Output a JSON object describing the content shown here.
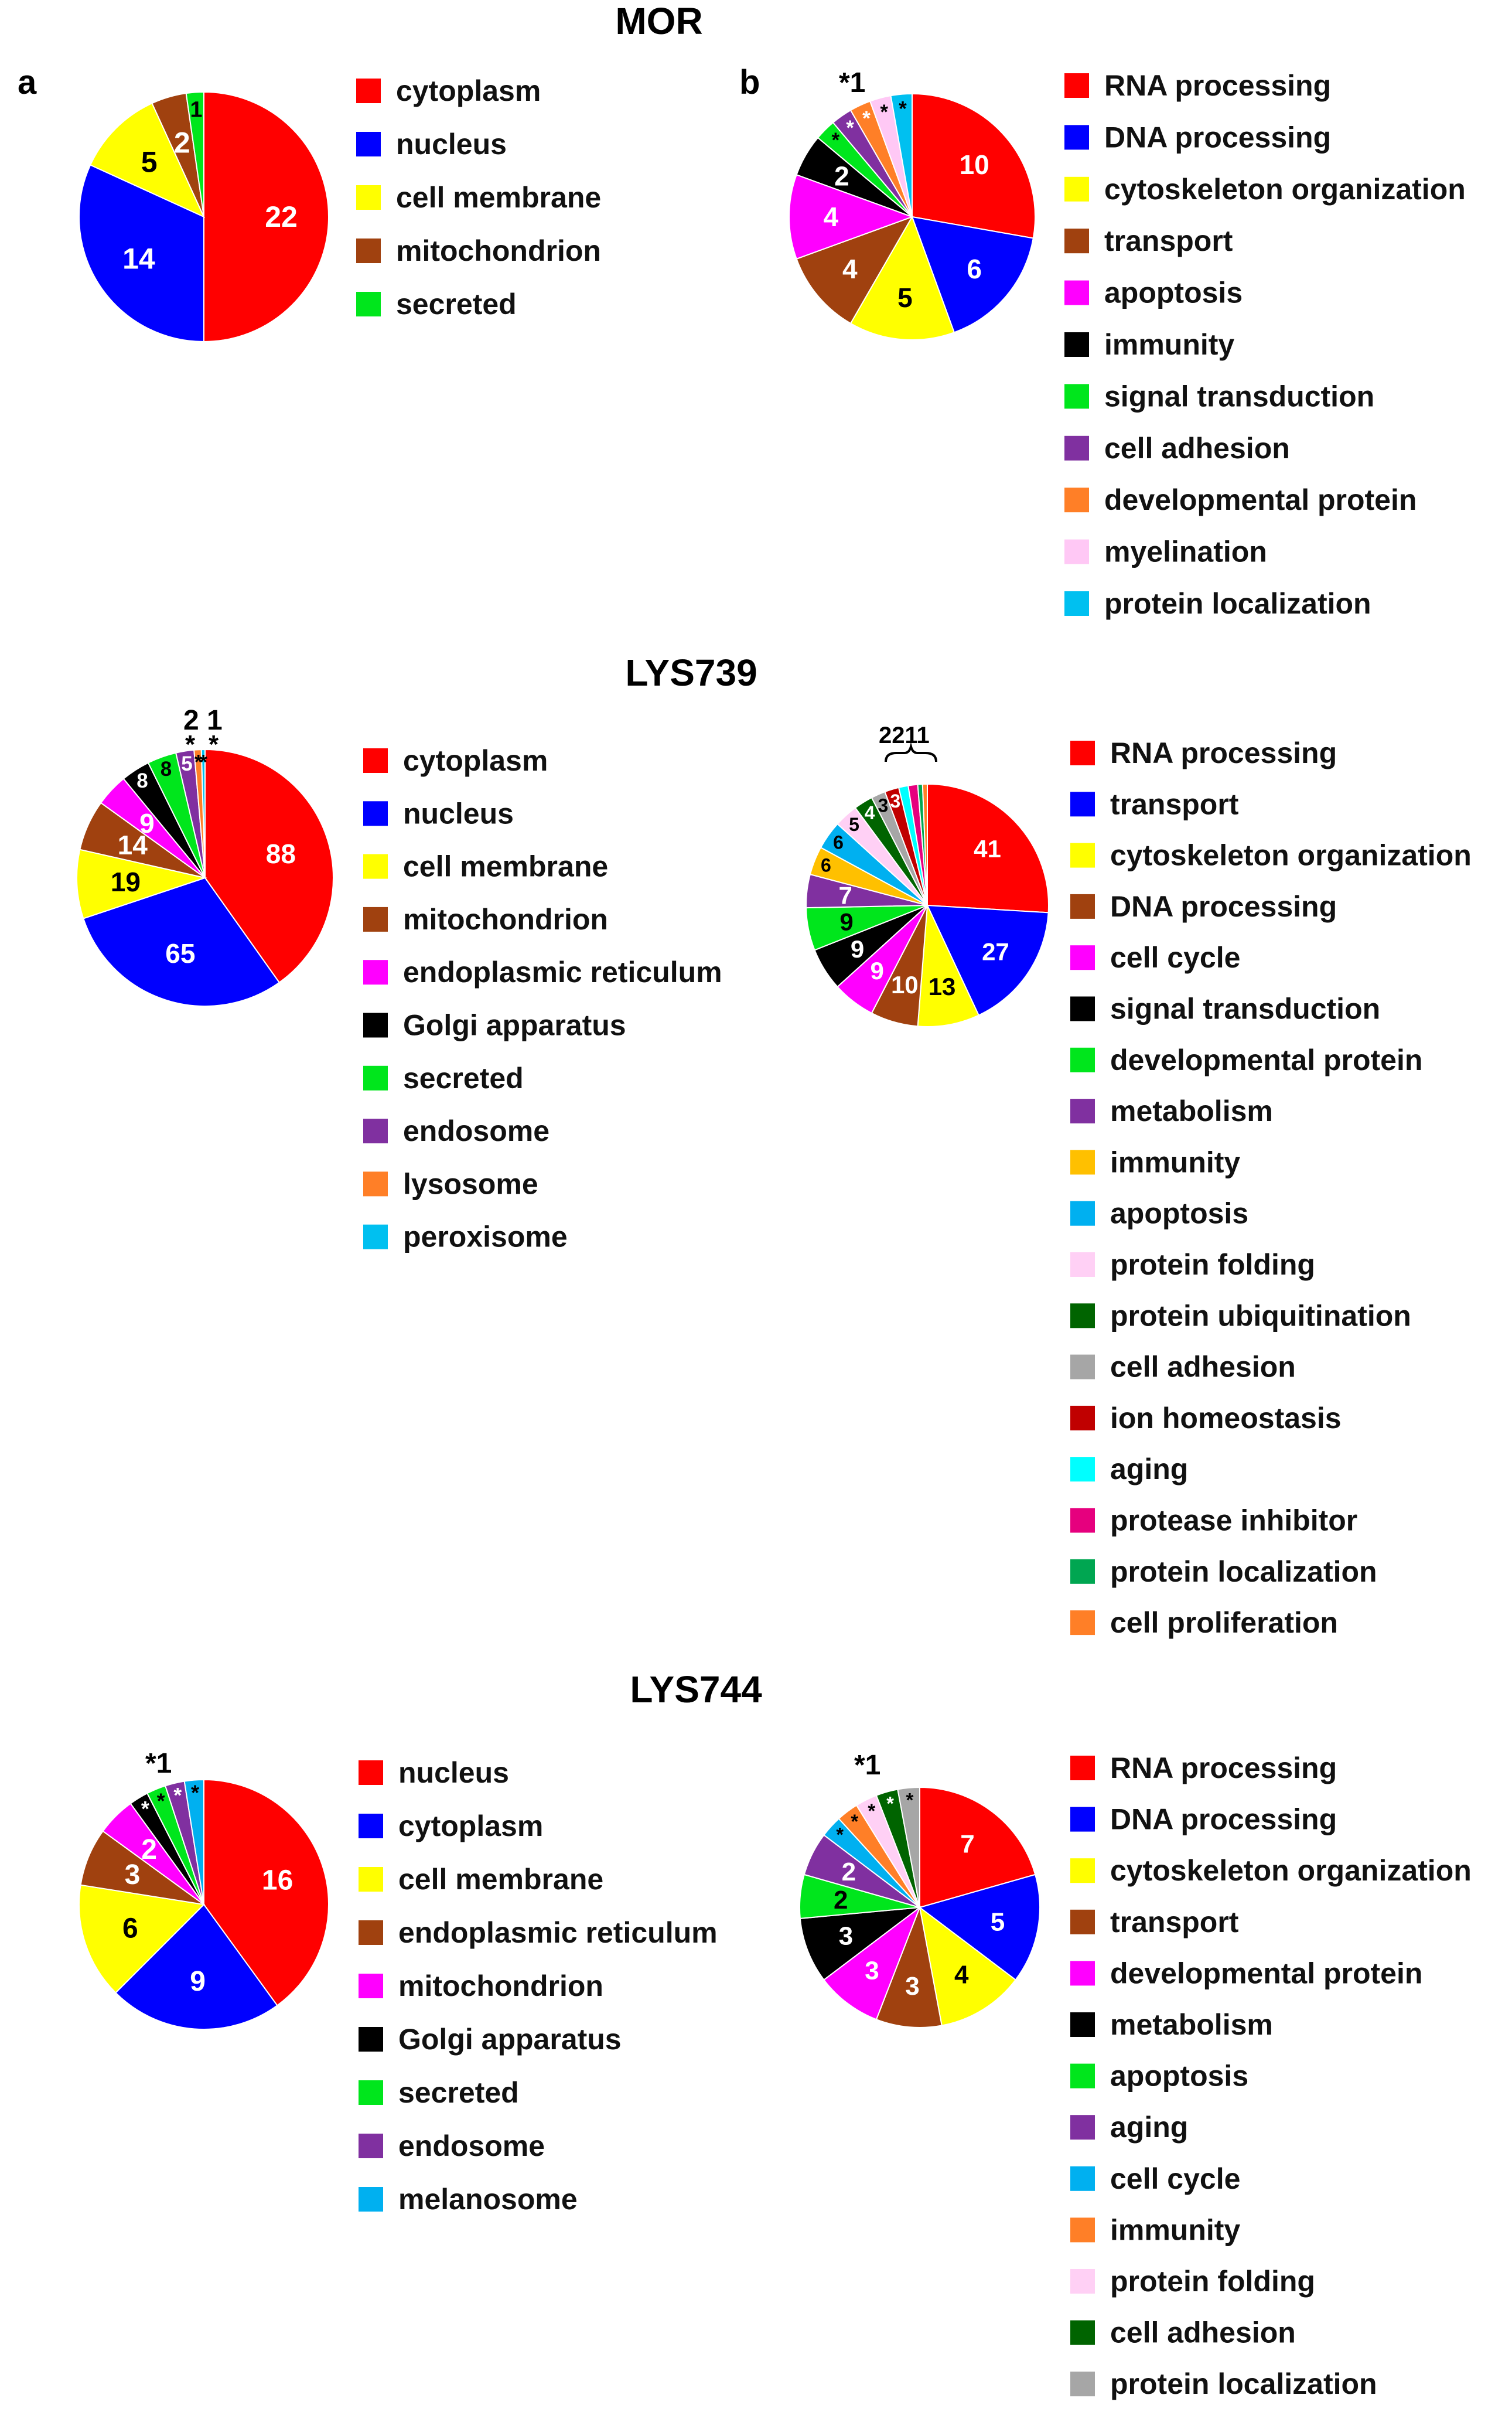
{
  "figure": {
    "panel_labels": {
      "a": "a",
      "b": "b"
    }
  },
  "chart_data": [
    {
      "type": "pie",
      "title": "MOR",
      "panel": "a",
      "id": "mor-loc",
      "categories": [
        "cytoplasm",
        "nucleus",
        "cell membrane",
        "mitochondrion",
        "secreted"
      ],
      "values": [
        22,
        14,
        5,
        2,
        1
      ],
      "colors": [
        "#ff0000",
        "#0000ff",
        "#ffff00",
        "#a0410f",
        "#00e61c"
      ],
      "labels": [
        "22",
        "14",
        "5",
        "2",
        "1"
      ],
      "label_colors": [
        "#ffffff",
        "#ffffff",
        "#000000",
        "#ffffff",
        "#000000"
      ],
      "outside_annotations": []
    },
    {
      "type": "pie",
      "title": "",
      "panel": "b",
      "id": "mor-func",
      "categories": [
        "RNA processing",
        "DNA processing",
        "cytoskeleton organization",
        "transport",
        "apoptosis",
        "immunity",
        "signal transduction",
        "cell adhesion",
        "developmental protein",
        "myelination",
        "protein localization"
      ],
      "values": [
        10,
        6,
        5,
        4,
        4,
        2,
        1,
        1,
        1,
        1,
        1
      ],
      "colors": [
        "#ff0000",
        "#0000ff",
        "#ffff00",
        "#a0410f",
        "#ff00ff",
        "#000000",
        "#00e61c",
        "#8030a0",
        "#ff7f27",
        "#ffc8f5",
        "#00c0f0"
      ],
      "labels": [
        "10",
        "6",
        "5",
        "4",
        "4",
        "2",
        "*",
        "*",
        "*",
        "*",
        "*"
      ],
      "label_colors": [
        "#ffffff",
        "#ffffff",
        "#000000",
        "#ffffff",
        "#ffffff",
        "#ffffff",
        "#000000",
        "#ffffff",
        "#ffffff",
        "#000000",
        "#000000"
      ],
      "outside_annotations": [
        "*1"
      ]
    },
    {
      "type": "pie",
      "title": "LYS739",
      "panel": "a",
      "id": "lys739-loc",
      "categories": [
        "cytoplasm",
        "nucleus",
        "cell membrane",
        "mitochondrion",
        "endoplasmic reticulum",
        "Golgi apparatus",
        "secreted",
        "endosome",
        "lysosome",
        "peroxisome"
      ],
      "values": [
        88,
        65,
        19,
        14,
        9,
        8,
        8,
        5,
        2,
        1
      ],
      "colors": [
        "#ff0000",
        "#0000ff",
        "#ffff00",
        "#a0410f",
        "#ff00ff",
        "#000000",
        "#00e61c",
        "#8030a0",
        "#ff7f27",
        "#00c0f0"
      ],
      "labels": [
        "88",
        "65",
        "19",
        "14",
        "9",
        "8",
        "8",
        "5",
        "*",
        "*"
      ],
      "label_colors": [
        "#ffffff",
        "#ffffff",
        "#000000",
        "#ffffff",
        "#ffffff",
        "#ffffff",
        "#000000",
        "#ffffff",
        "#000000",
        "#000000"
      ],
      "outside_annotations": [
        "2",
        "1",
        "*",
        "*",
        "*"
      ]
    },
    {
      "type": "pie",
      "title": "",
      "panel": "b",
      "id": "lys739-func",
      "categories": [
        "RNA processing",
        "transport",
        "cytoskeleton organization",
        "DNA processing",
        "cell cycle",
        "signal transduction",
        "developmental protein",
        "metabolism",
        "immunity",
        "apoptosis",
        "protein folding",
        "protein ubiquitination",
        "cell adhesion",
        "ion homeostasis",
        "aging",
        "protease inhibitor",
        "protein localization",
        "cell proliferation"
      ],
      "values": [
        41,
        27,
        13,
        10,
        9,
        9,
        9,
        7,
        6,
        6,
        5,
        4,
        3,
        3,
        2,
        2,
        1,
        1
      ],
      "colors": [
        "#ff0000",
        "#0000ff",
        "#ffff00",
        "#a0410f",
        "#ff00ff",
        "#000000",
        "#00e61c",
        "#8030a0",
        "#ffc000",
        "#00b0f0",
        "#ffd0f5",
        "#006400",
        "#a6a6a6",
        "#c00000",
        "#00ffff",
        "#e6007e",
        "#00a651",
        "#ff7f27"
      ],
      "labels": [
        "41",
        "27",
        "13",
        "10",
        "9",
        "9",
        "9",
        "7",
        "6",
        "6",
        "5",
        "4",
        "3",
        "3",
        "",
        "",
        "",
        ""
      ],
      "label_colors": [
        "#ffffff",
        "#ffffff",
        "#000000",
        "#ffffff",
        "#ffffff",
        "#ffffff",
        "#000000",
        "#ffffff",
        "#000000",
        "#000000",
        "#000000",
        "#ffffff",
        "#000000",
        "#ffffff",
        "#000000",
        "#000000",
        "#000000",
        "#000000"
      ],
      "outside_annotations": [
        "2211"
      ]
    },
    {
      "type": "pie",
      "title": "LYS744",
      "panel": "a",
      "id": "lys744-loc",
      "categories": [
        "nucleus",
        "cytoplasm",
        "cell membrane",
        "endoplasmic reticulum",
        "mitochondrion",
        "Golgi apparatus",
        "secreted",
        "endosome",
        "melanosome"
      ],
      "values": [
        16,
        9,
        6,
        3,
        2,
        1,
        1,
        1,
        1
      ],
      "colors": [
        "#ff0000",
        "#0000ff",
        "#ffff00",
        "#a0410f",
        "#ff00ff",
        "#000000",
        "#00e61c",
        "#8030a0",
        "#00b0f0"
      ],
      "labels": [
        "16",
        "9",
        "6",
        "3",
        "2",
        "*",
        "*",
        "*",
        "*"
      ],
      "label_colors": [
        "#ffffff",
        "#ffffff",
        "#000000",
        "#ffffff",
        "#ffffff",
        "#ffffff",
        "#000000",
        "#ffffff",
        "#000000"
      ],
      "outside_annotations": [
        "*1"
      ]
    },
    {
      "type": "pie",
      "title": "",
      "panel": "b",
      "id": "lys744-func",
      "categories": [
        "RNA processing",
        "DNA processing",
        "cytoskeleton organization",
        "transport",
        "developmental protein",
        "metabolism",
        "apoptosis",
        "aging",
        "cell cycle",
        "immunity",
        "protein folding",
        "cell adhesion",
        "protein localization"
      ],
      "values": [
        7,
        5,
        4,
        3,
        3,
        3,
        2,
        2,
        1,
        1,
        1,
        1,
        1
      ],
      "colors": [
        "#ff0000",
        "#0000ff",
        "#ffff00",
        "#a0410f",
        "#ff00ff",
        "#000000",
        "#00e61c",
        "#8030a0",
        "#00b0f0",
        "#ff7f27",
        "#ffd0f5",
        "#006400",
        "#a6a6a6"
      ],
      "labels": [
        "7",
        "5",
        "4",
        "3",
        "3",
        "3",
        "2",
        "2",
        "*",
        "*",
        "*",
        "*",
        "*"
      ],
      "label_colors": [
        "#ffffff",
        "#ffffff",
        "#000000",
        "#ffffff",
        "#ffffff",
        "#ffffff",
        "#000000",
        "#ffffff",
        "#000000",
        "#000000",
        "#000000",
        "#ffffff",
        "#000000"
      ],
      "outside_annotations": [
        "*1"
      ]
    }
  ]
}
